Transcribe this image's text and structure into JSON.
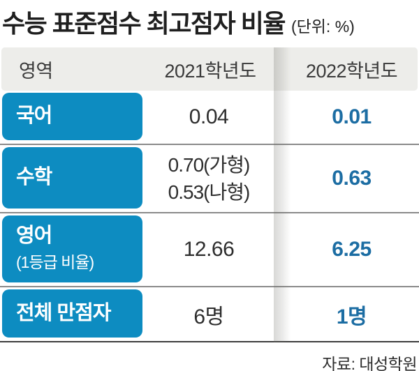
{
  "title": {
    "text": "수능 표준점수 최고점자 비율",
    "unit": "(단위: %)"
  },
  "table": {
    "columns": [
      "영역",
      "2021학년도",
      "2022학년도"
    ],
    "rows": [
      {
        "label": "국어",
        "y2021": [
          "0.04"
        ],
        "y2022": "0.01"
      },
      {
        "label": "수학",
        "y2021": [
          "0.70(가형)",
          "0.53(나형)"
        ],
        "y2022": "0.63"
      },
      {
        "label": "영어",
        "sublabel": "(1등급 비율)",
        "y2021": [
          "12.66"
        ],
        "y2022": "6.25"
      },
      {
        "label": "전체 만점자",
        "y2021": [
          "6명"
        ],
        "y2022": "1명"
      }
    ]
  },
  "source": "자료: 대성학원",
  "colors": {
    "chip_bg": "#0d8cc1",
    "highlight_value": "#1c6da3",
    "header_bg": "#ededea",
    "text_dark": "#2d2d2d",
    "row_divider": "#8a8a8a",
    "bottom_rule": "#3c3c3c"
  },
  "chart_data": {
    "type": "table",
    "title": "수능 표준점수 최고점자 비율",
    "unit": "%",
    "columns": [
      "영역",
      "2021학년도",
      "2022학년도"
    ],
    "rows": [
      [
        "국어",
        "0.04",
        "0.01"
      ],
      [
        "수학",
        "0.70(가형) / 0.53(나형)",
        "0.63"
      ],
      [
        "영어(1등급 비율)",
        "12.66",
        "6.25"
      ],
      [
        "전체 만점자",
        "6명",
        "1명"
      ]
    ],
    "source": "자료: 대성학원"
  }
}
